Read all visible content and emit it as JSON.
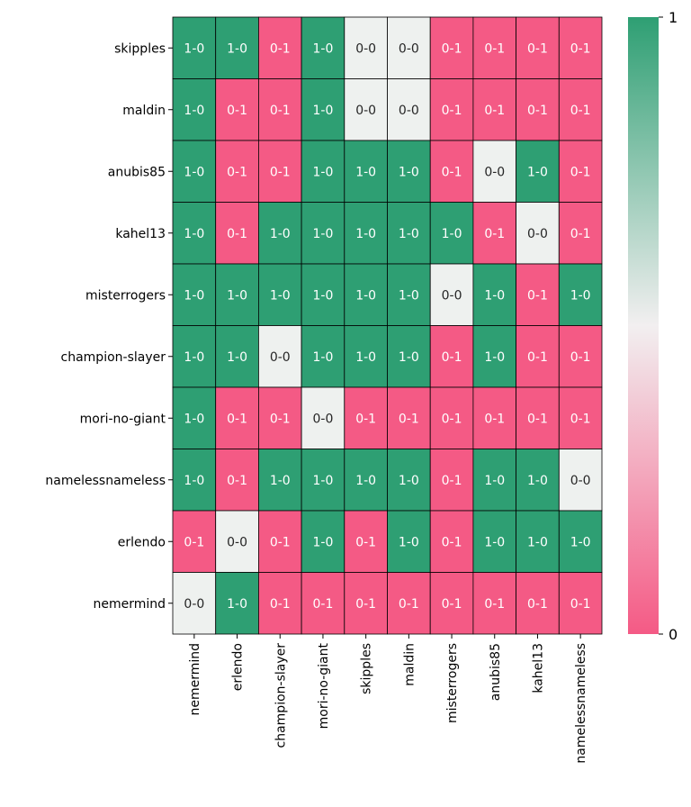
{
  "chart_data": {
    "type": "heatmap",
    "title": "",
    "xlabel": "",
    "ylabel": "",
    "rows": [
      "skipples",
      "maldin",
      "anubis85",
      "kahel13",
      "misterrogers",
      "champion-slayer",
      "mori-no-giant",
      "namelessnameless",
      "erlendo",
      "nemermind"
    ],
    "columns": [
      "nemermind",
      "erlendo",
      "champion-slayer",
      "mori-no-giant",
      "skipples",
      "maldin",
      "misterrogers",
      "anubis85",
      "kahel13",
      "namelessnameless"
    ],
    "annotations": [
      [
        "1-0",
        "1-0",
        "0-1",
        "1-0",
        "0-0",
        "0-0",
        "0-1",
        "0-1",
        "0-1",
        "0-1"
      ],
      [
        "1-0",
        "0-1",
        "0-1",
        "1-0",
        "0-0",
        "0-0",
        "0-1",
        "0-1",
        "0-1",
        "0-1"
      ],
      [
        "1-0",
        "0-1",
        "0-1",
        "1-0",
        "1-0",
        "1-0",
        "0-1",
        "0-0",
        "1-0",
        "0-1"
      ],
      [
        "1-0",
        "0-1",
        "1-0",
        "1-0",
        "1-0",
        "1-0",
        "1-0",
        "0-1",
        "0-0",
        "0-1"
      ],
      [
        "1-0",
        "1-0",
        "1-0",
        "1-0",
        "1-0",
        "1-0",
        "0-0",
        "1-0",
        "0-1",
        "1-0"
      ],
      [
        "1-0",
        "1-0",
        "0-0",
        "1-0",
        "1-0",
        "1-0",
        "0-1",
        "1-0",
        "0-1",
        "0-1"
      ],
      [
        "1-0",
        "0-1",
        "0-1",
        "0-0",
        "0-1",
        "0-1",
        "0-1",
        "0-1",
        "0-1",
        "0-1"
      ],
      [
        "1-0",
        "0-1",
        "1-0",
        "1-0",
        "1-0",
        "1-0",
        "0-1",
        "1-0",
        "1-0",
        "0-0"
      ],
      [
        "0-1",
        "0-0",
        "0-1",
        "1-0",
        "0-1",
        "1-0",
        "0-1",
        "1-0",
        "1-0",
        "1-0"
      ],
      [
        "0-0",
        "1-0",
        "0-1",
        "0-1",
        "0-1",
        "0-1",
        "0-1",
        "0-1",
        "0-1",
        "0-1"
      ]
    ],
    "value_map": {
      "1-0": 1,
      "0-0": 0.5,
      "0-1": 0
    },
    "colorbar": {
      "min": 0,
      "max": 1,
      "ticks": [
        "0",
        "1"
      ]
    },
    "colors": {
      "high": "#2e9f73",
      "mid": "#eef1ef",
      "low": "#f45a85",
      "cell_border": "#000000"
    }
  }
}
